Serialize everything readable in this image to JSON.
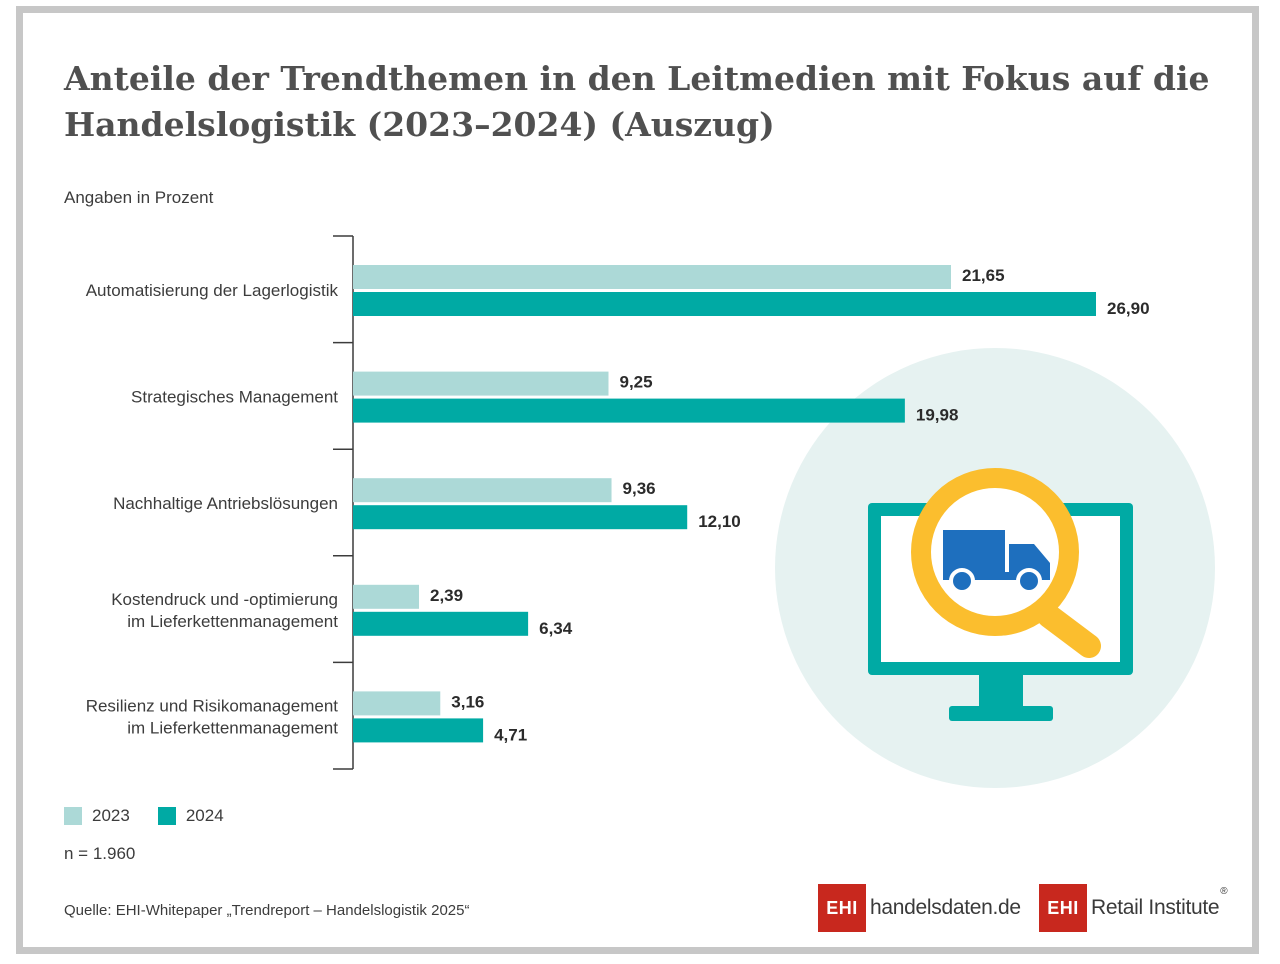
{
  "title": "Anteile der Trendthemen in den Leitmedien mit Fokus auf die Handelslogistik (2023–2024) (Auszug)",
  "subtitle": "Angaben in Prozent",
  "chart_data": {
    "type": "bar",
    "orientation": "horizontal",
    "title": "Anteile der Trendthemen in den Leitmedien mit Fokus auf die Handelslogistik (2023–2024) (Auszug)",
    "categories": [
      [
        "Automatisierung der Lagerlogistik"
      ],
      [
        "Strategisches Management"
      ],
      [
        "Nachhaltige Antriebslösungen"
      ],
      [
        "Kostendruck und -optimierung",
        "im Lieferkettenmanagement"
      ],
      [
        "Resilienz und Risikomanagement",
        "im Lieferkettenmanagement"
      ]
    ],
    "series": [
      {
        "name": "2023",
        "color": "#acd9d7",
        "values": [
          21.65,
          9.25,
          9.36,
          2.39,
          3.16
        ],
        "labels": [
          "21,65",
          "9,25",
          "9,36",
          "2,39",
          "3,16"
        ]
      },
      {
        "name": "2024",
        "color": "#00aaa4",
        "values": [
          26.9,
          19.98,
          12.1,
          6.34,
          4.71
        ],
        "labels": [
          "26,90",
          "19,98",
          "12,10",
          "6,34",
          "4,71"
        ]
      }
    ],
    "xlim": [
      0,
      30
    ],
    "legend": "bottom-left",
    "grid": false
  },
  "note": "n = 1.960",
  "source": "Quelle: EHI-Whitepaper „Trendreport – Handelslogistik 2025“",
  "logos": {
    "logo1_box": "EHI",
    "logo1_text": "handelsdaten.de",
    "logo2_box": "EHI",
    "logo2_text": "Retail Institute",
    "logo2_reg": "®"
  },
  "colors": {
    "circle": "#e6f2f1",
    "monitor": "#00aaa4",
    "magnifier": "#fbbe2e",
    "truck": "#1e6fbe",
    "axis": "#3c3c3c"
  },
  "icons": [
    "monitor-icon",
    "magnifier-icon",
    "truck-icon"
  ]
}
